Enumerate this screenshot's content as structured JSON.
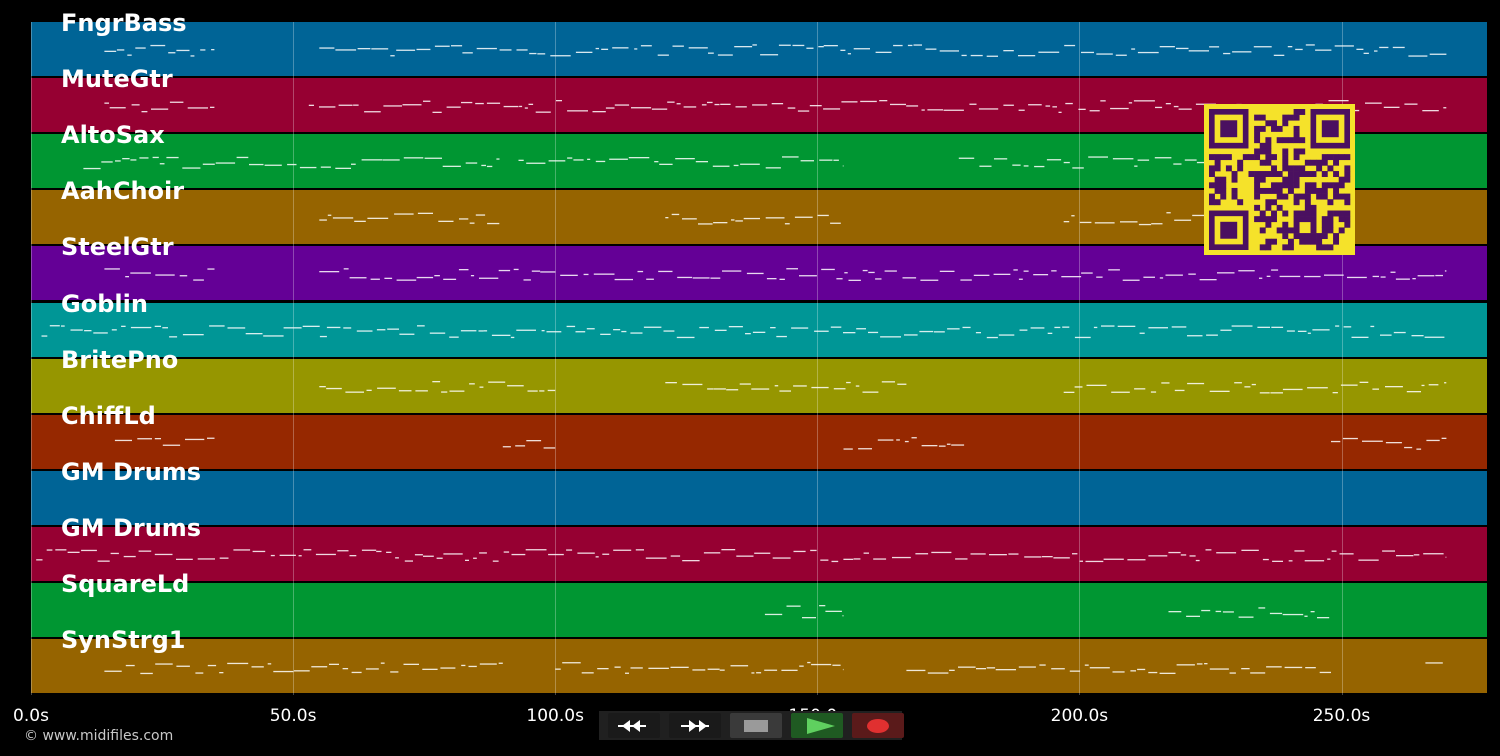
{
  "tracks": [
    {
      "name": "FngrBass",
      "color": "#006496"
    },
    {
      "name": "MuteGtr",
      "color": "#960032"
    },
    {
      "name": "AltoSax",
      "color": "#009632"
    },
    {
      "name": "AahChoir",
      "color": "#966400"
    },
    {
      "name": "SteelGtr",
      "color": "#640096"
    },
    {
      "name": "Goblin",
      "color": "#009696"
    },
    {
      "name": "BritePno",
      "color": "#969600"
    },
    {
      "name": "ChiffLd",
      "color": "#962800"
    },
    {
      "name": "GM Drums",
      "color": "#006496"
    },
    {
      "name": "GM Drums",
      "color": "#960032"
    },
    {
      "name": "SquareLd",
      "color": "#009632"
    },
    {
      "name": "SynStrg1",
      "color": "#966400"
    }
  ],
  "timeline": {
    "ticks": [
      "0.0s",
      "50.0s",
      "100.0s",
      "150.0s",
      "200.0s",
      "250.0s"
    ]
  },
  "footer": {
    "copyright": "© www.midifiles.com"
  },
  "transport": {
    "rewind": "rewind-icon",
    "fast_forward": "fast-forward-icon",
    "stop": "stop-icon",
    "play": "play-icon",
    "record": "record-icon"
  },
  "qr_code": "qr-code-icon"
}
